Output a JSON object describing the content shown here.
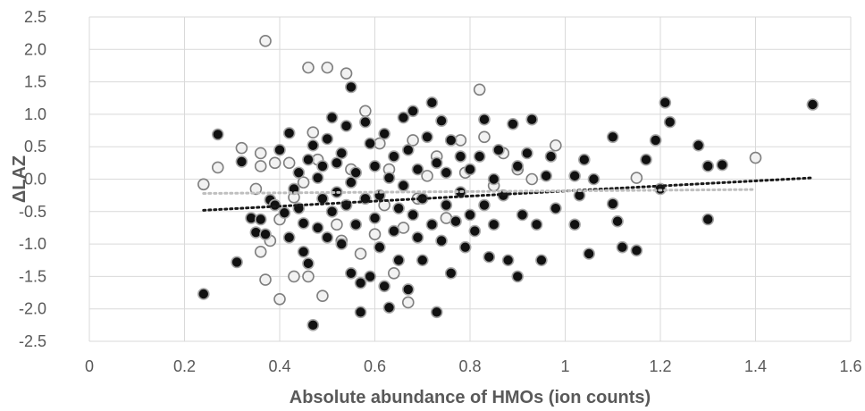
{
  "chart_data": {
    "type": "scatter",
    "title": "",
    "xlabel": "Absolute abundance of HMOs (ion counts)",
    "ylabel": "ΔLAZ",
    "xlim": [
      0,
      1.6
    ],
    "ylim": [
      -2.5,
      2.5
    ],
    "x_ticks": [
      "0",
      "0.2",
      "0.4",
      "0.6",
      "0.8",
      "1",
      "1.2",
      "1.4",
      "1.6"
    ],
    "y_ticks": [
      "2.5",
      "2.0",
      "1.5",
      "1.0",
      "0.5",
      "0.0",
      "-0.5",
      "-1.0",
      "-1.5",
      "-2.0",
      "-2.5"
    ],
    "grid": true,
    "series": [
      {
        "marker": "filled-dark",
        "color": "#111111",
        "edge_color": "#a6a6a6",
        "trendline": {
          "x": [
            0.24,
            1.52
          ],
          "y": [
            -0.48,
            0.02
          ],
          "style": "dotted",
          "color": "#1a1a1a"
        },
        "points": [
          [
            0.24,
            -1.77
          ],
          [
            0.27,
            0.69
          ],
          [
            0.31,
            -1.28
          ],
          [
            0.32,
            0.27
          ],
          [
            0.34,
            -0.6
          ],
          [
            0.35,
            -0.82
          ],
          [
            0.36,
            -0.62
          ],
          [
            0.37,
            -0.85
          ],
          [
            0.38,
            -0.32
          ],
          [
            0.39,
            -0.4
          ],
          [
            0.4,
            0.45
          ],
          [
            0.41,
            -0.52
          ],
          [
            0.42,
            0.71
          ],
          [
            0.42,
            -0.9
          ],
          [
            0.43,
            -0.15
          ],
          [
            0.44,
            -0.45
          ],
          [
            0.44,
            0.1
          ],
          [
            0.45,
            -0.68
          ],
          [
            0.45,
            -1.12
          ],
          [
            0.46,
            0.3
          ],
          [
            0.46,
            -1.3
          ],
          [
            0.47,
            -2.25
          ],
          [
            0.47,
            0.52
          ],
          [
            0.48,
            0.02
          ],
          [
            0.48,
            -0.75
          ],
          [
            0.49,
            0.2
          ],
          [
            0.49,
            -0.3
          ],
          [
            0.5,
            0.62
          ],
          [
            0.5,
            -0.9
          ],
          [
            0.51,
            -0.5
          ],
          [
            0.51,
            0.95
          ],
          [
            0.52,
            0.25
          ],
          [
            0.52,
            -0.2
          ],
          [
            0.53,
            -1.0
          ],
          [
            0.53,
            0.4
          ],
          [
            0.54,
            -0.4
          ],
          [
            0.54,
            0.82
          ],
          [
            0.55,
            -1.45
          ],
          [
            0.55,
            1.42
          ],
          [
            0.55,
            -0.05
          ],
          [
            0.56,
            -0.7
          ],
          [
            0.56,
            0.1
          ],
          [
            0.57,
            -2.05
          ],
          [
            0.57,
            -1.6
          ],
          [
            0.58,
            0.88
          ],
          [
            0.58,
            -0.3
          ],
          [
            0.59,
            -1.5
          ],
          [
            0.59,
            0.55
          ],
          [
            0.6,
            -0.6
          ],
          [
            0.6,
            0.2
          ],
          [
            0.61,
            -1.05
          ],
          [
            0.61,
            -0.25
          ],
          [
            0.62,
            0.7
          ],
          [
            0.62,
            -1.65
          ],
          [
            0.63,
            -1.98
          ],
          [
            0.63,
            0.02
          ],
          [
            0.64,
            -0.8
          ],
          [
            0.64,
            0.35
          ],
          [
            0.65,
            -1.25
          ],
          [
            0.65,
            -0.45
          ],
          [
            0.66,
            0.95
          ],
          [
            0.66,
            -0.1
          ],
          [
            0.67,
            -1.7
          ],
          [
            0.67,
            0.45
          ],
          [
            0.68,
            -0.55
          ],
          [
            0.68,
            1.05
          ],
          [
            0.69,
            -0.9
          ],
          [
            0.69,
            0.15
          ],
          [
            0.7,
            -1.25
          ],
          [
            0.7,
            -0.3
          ],
          [
            0.71,
            0.65
          ],
          [
            0.72,
            -0.7
          ],
          [
            0.72,
            1.18
          ],
          [
            0.73,
            -2.05
          ],
          [
            0.73,
            0.25
          ],
          [
            0.74,
            -0.95
          ],
          [
            0.74,
            0.9
          ],
          [
            0.75,
            -0.4
          ],
          [
            0.75,
            0.1
          ],
          [
            0.76,
            -1.45
          ],
          [
            0.76,
            0.6
          ],
          [
            0.77,
            -0.65
          ],
          [
            0.78,
            -0.2
          ],
          [
            0.78,
            0.35
          ],
          [
            0.79,
            -1.05
          ],
          [
            0.8,
            0.15
          ],
          [
            0.8,
            -0.55
          ],
          [
            0.81,
            -0.8
          ],
          [
            0.82,
            0.35
          ],
          [
            0.83,
            0.92
          ],
          [
            0.83,
            -0.4
          ],
          [
            0.84,
            -1.2
          ],
          [
            0.85,
            0.0
          ],
          [
            0.85,
            -0.7
          ],
          [
            0.86,
            0.45
          ],
          [
            0.87,
            -0.25
          ],
          [
            0.88,
            -1.25
          ],
          [
            0.89,
            0.85
          ],
          [
            0.9,
            -1.5
          ],
          [
            0.9,
            0.2
          ],
          [
            0.91,
            -0.55
          ],
          [
            0.92,
            0.4
          ],
          [
            0.93,
            0.92
          ],
          [
            0.94,
            -0.7
          ],
          [
            0.95,
            -1.25
          ],
          [
            0.96,
            0.05
          ],
          [
            0.97,
            0.35
          ],
          [
            0.98,
            -0.45
          ],
          [
            1.02,
            -0.7
          ],
          [
            1.02,
            0.05
          ],
          [
            1.03,
            -0.25
          ],
          [
            1.04,
            0.3
          ],
          [
            1.05,
            -1.15
          ],
          [
            1.06,
            0.0
          ],
          [
            1.1,
            0.65
          ],
          [
            1.1,
            -0.38
          ],
          [
            1.11,
            -0.65
          ],
          [
            1.12,
            -1.05
          ],
          [
            1.15,
            -1.1
          ],
          [
            1.17,
            0.3
          ],
          [
            1.19,
            0.6
          ],
          [
            1.2,
            -0.15
          ],
          [
            1.21,
            1.18
          ],
          [
            1.22,
            0.88
          ],
          [
            1.28,
            0.52
          ],
          [
            1.3,
            0.2
          ],
          [
            1.3,
            -0.62
          ],
          [
            1.33,
            0.22
          ],
          [
            1.52,
            1.15
          ]
        ]
      },
      {
        "marker": "open-grey",
        "color": "#f2f2f2",
        "edge_color": "#7f7f7f",
        "trendline": {
          "x": [
            0.24,
            1.4
          ],
          "y": [
            -0.22,
            -0.16
          ],
          "style": "dotted",
          "color": "#bfbfbf"
        },
        "points": [
          [
            0.24,
            -0.08
          ],
          [
            0.27,
            0.18
          ],
          [
            0.32,
            0.48
          ],
          [
            0.35,
            -0.15
          ],
          [
            0.36,
            0.4
          ],
          [
            0.36,
            0.2
          ],
          [
            0.36,
            -1.12
          ],
          [
            0.37,
            -1.55
          ],
          [
            0.37,
            2.13
          ],
          [
            0.38,
            -0.95
          ],
          [
            0.39,
            0.25
          ],
          [
            0.4,
            -0.62
          ],
          [
            0.4,
            -1.85
          ],
          [
            0.42,
            0.25
          ],
          [
            0.43,
            -0.28
          ],
          [
            0.43,
            -1.5
          ],
          [
            0.45,
            -0.05
          ],
          [
            0.46,
            1.72
          ],
          [
            0.46,
            -1.5
          ],
          [
            0.47,
            0.72
          ],
          [
            0.48,
            0.3
          ],
          [
            0.49,
            -1.8
          ],
          [
            0.5,
            1.72
          ],
          [
            0.52,
            -0.7
          ],
          [
            0.53,
            -0.95
          ],
          [
            0.54,
            1.63
          ],
          [
            0.55,
            0.15
          ],
          [
            0.57,
            -1.15
          ],
          [
            0.58,
            1.05
          ],
          [
            0.6,
            -0.85
          ],
          [
            0.61,
            0.55
          ],
          [
            0.62,
            -0.4
          ],
          [
            0.63,
            0.15
          ],
          [
            0.64,
            -1.45
          ],
          [
            0.66,
            -0.75
          ],
          [
            0.67,
            -1.9
          ],
          [
            0.68,
            0.6
          ],
          [
            0.69,
            -0.3
          ],
          [
            0.71,
            0.05
          ],
          [
            0.73,
            0.35
          ],
          [
            0.75,
            -0.6
          ],
          [
            0.78,
            0.6
          ],
          [
            0.79,
            0.1
          ],
          [
            0.82,
            1.38
          ],
          [
            0.83,
            0.65
          ],
          [
            0.85,
            -0.1
          ],
          [
            0.87,
            0.4
          ],
          [
            0.9,
            0.15
          ],
          [
            0.93,
            0.0
          ],
          [
            0.98,
            0.52
          ],
          [
            1.15,
            0.02
          ],
          [
            1.4,
            0.33
          ]
        ]
      }
    ]
  }
}
